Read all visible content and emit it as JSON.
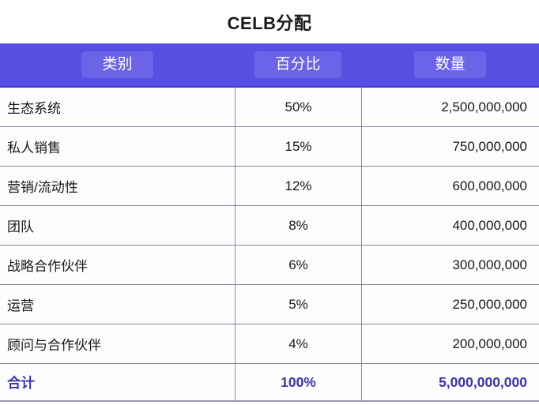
{
  "title": "CELB分配",
  "table": {
    "headers": {
      "category": "类别",
      "percent": "百分比",
      "amount": "数量"
    },
    "rows": [
      {
        "category": "生态系统",
        "percent": "50%",
        "amount": "2,500,000,000"
      },
      {
        "category": "私人销售",
        "percent": "15%",
        "amount": "750,000,000"
      },
      {
        "category": "营销/流动性",
        "percent": "12%",
        "amount": "600,000,000"
      },
      {
        "category": "团队",
        "percent": "8%",
        "amount": "400,000,000"
      },
      {
        "category": "战略合作伙伴",
        "percent": "6%",
        "amount": "300,000,000"
      },
      {
        "category": "运营",
        "percent": "5%",
        "amount": "250,000,000"
      },
      {
        "category": "顾问与合作伙伴",
        "percent": "4%",
        "amount": "200,000,000"
      }
    ],
    "total": {
      "category": "合计",
      "percent": "100%",
      "amount": "5,000,000,000"
    }
  },
  "colors": {
    "header_bg": "#564FDF",
    "header_highlight": "#6B64E8",
    "header_text": "#FFFFFF",
    "header_edge": "#433CC4",
    "total_text": "#3A34AD",
    "row_border": "#81819A",
    "column_border": "#8A8AA8",
    "body_text": "#17171A",
    "page_bg": "#FFFFFF"
  },
  "chart_data": {
    "type": "table",
    "title": "CELB分配",
    "columns": [
      "类别",
      "百分比",
      "数量"
    ],
    "rows": [
      [
        "生态系统",
        "50%",
        "2,500,000,000"
      ],
      [
        "私人销售",
        "15%",
        "750,000,000"
      ],
      [
        "营销/流动性",
        "12%",
        "600,000,000"
      ],
      [
        "团队",
        "8%",
        "400,000,000"
      ],
      [
        "战略合作伙伴",
        "6%",
        "300,000,000"
      ],
      [
        "运营",
        "5%",
        "250,000,000"
      ],
      [
        "顾问与合作伙伴",
        "4%",
        "200,000,000"
      ]
    ],
    "total_row": [
      "合计",
      "100%",
      "5,000,000,000"
    ],
    "percent_values": [
      50,
      15,
      12,
      8,
      6,
      5,
      4
    ],
    "amount_values": [
      2500000000,
      750000000,
      600000000,
      400000000,
      300000000,
      250000000,
      200000000
    ],
    "total_percent": 100,
    "total_amount": 5000000000
  }
}
